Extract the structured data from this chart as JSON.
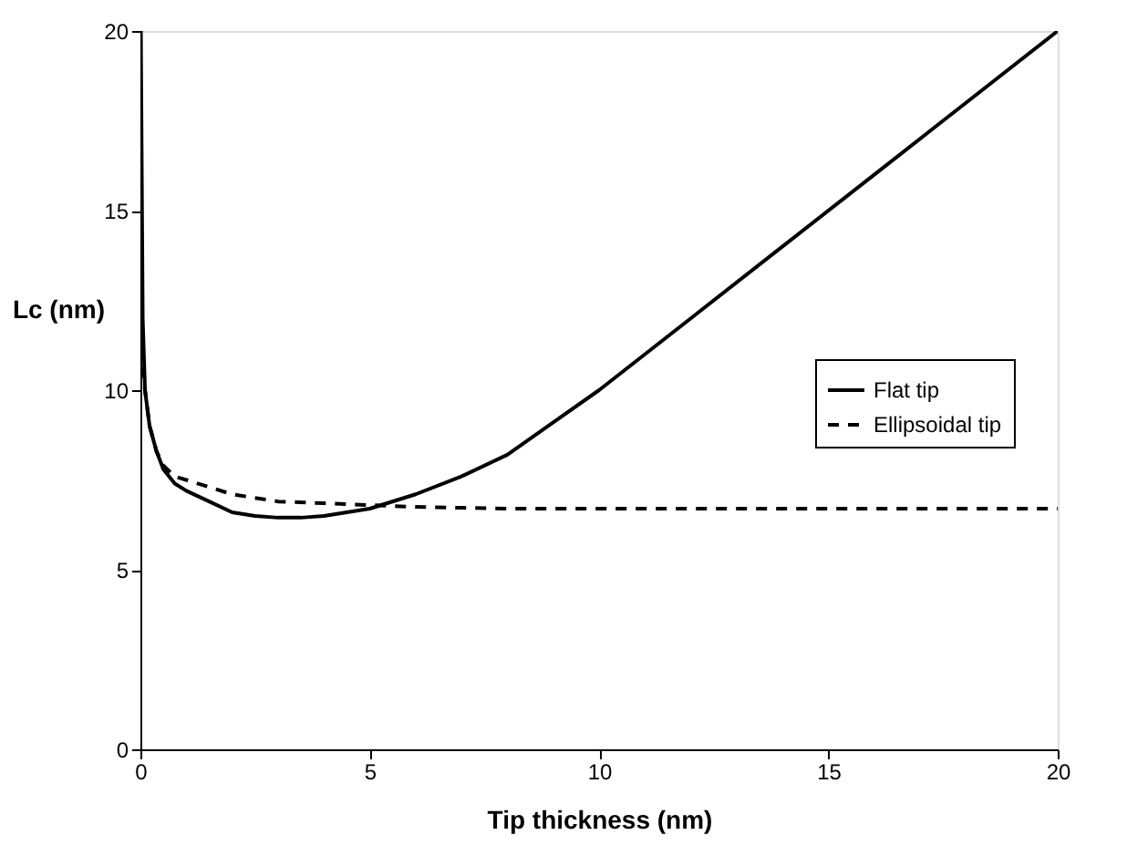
{
  "chart_data": {
    "type": "line",
    "xlabel": "Tip thickness (nm)",
    "ylabel": "Lc (nm)",
    "xlim": [
      0,
      20
    ],
    "ylim": [
      0,
      20
    ],
    "xticks": [
      0,
      5,
      10,
      15,
      20
    ],
    "yticks": [
      0,
      5,
      10,
      15,
      20
    ],
    "grid": false,
    "legend": "right",
    "marker": "none",
    "series": [
      {
        "name": "Flat tip",
        "color": "#000000",
        "line_style": "solid",
        "x": [
          0.01,
          0.05,
          0.1,
          0.2,
          0.35,
          0.5,
          0.75,
          1,
          1.5,
          2,
          2.5,
          3,
          3.5,
          4,
          4.5,
          5,
          6,
          7,
          8,
          9,
          10,
          12,
          14,
          16,
          18,
          20
        ],
        "values": [
          20,
          12,
          10,
          9,
          8.3,
          7.8,
          7.4,
          7.2,
          6.9,
          6.6,
          6.5,
          6.45,
          6.45,
          6.5,
          6.6,
          6.7,
          7.1,
          7.6,
          8.2,
          9.1,
          10,
          12,
          14,
          16,
          18,
          20
        ]
      },
      {
        "name": "Ellipsoidal tip",
        "color": "#000000",
        "line_style": "dashed",
        "x": [
          0.01,
          0.05,
          0.1,
          0.2,
          0.35,
          0.5,
          0.75,
          1,
          1.5,
          2,
          3,
          4,
          5,
          6,
          8,
          10,
          12,
          15,
          18,
          20
        ],
        "values": [
          14,
          11,
          10,
          9,
          8.3,
          7.9,
          7.6,
          7.5,
          7.3,
          7.1,
          6.9,
          6.85,
          6.8,
          6.75,
          6.7,
          6.7,
          6.7,
          6.7,
          6.7,
          6.7
        ]
      }
    ]
  }
}
